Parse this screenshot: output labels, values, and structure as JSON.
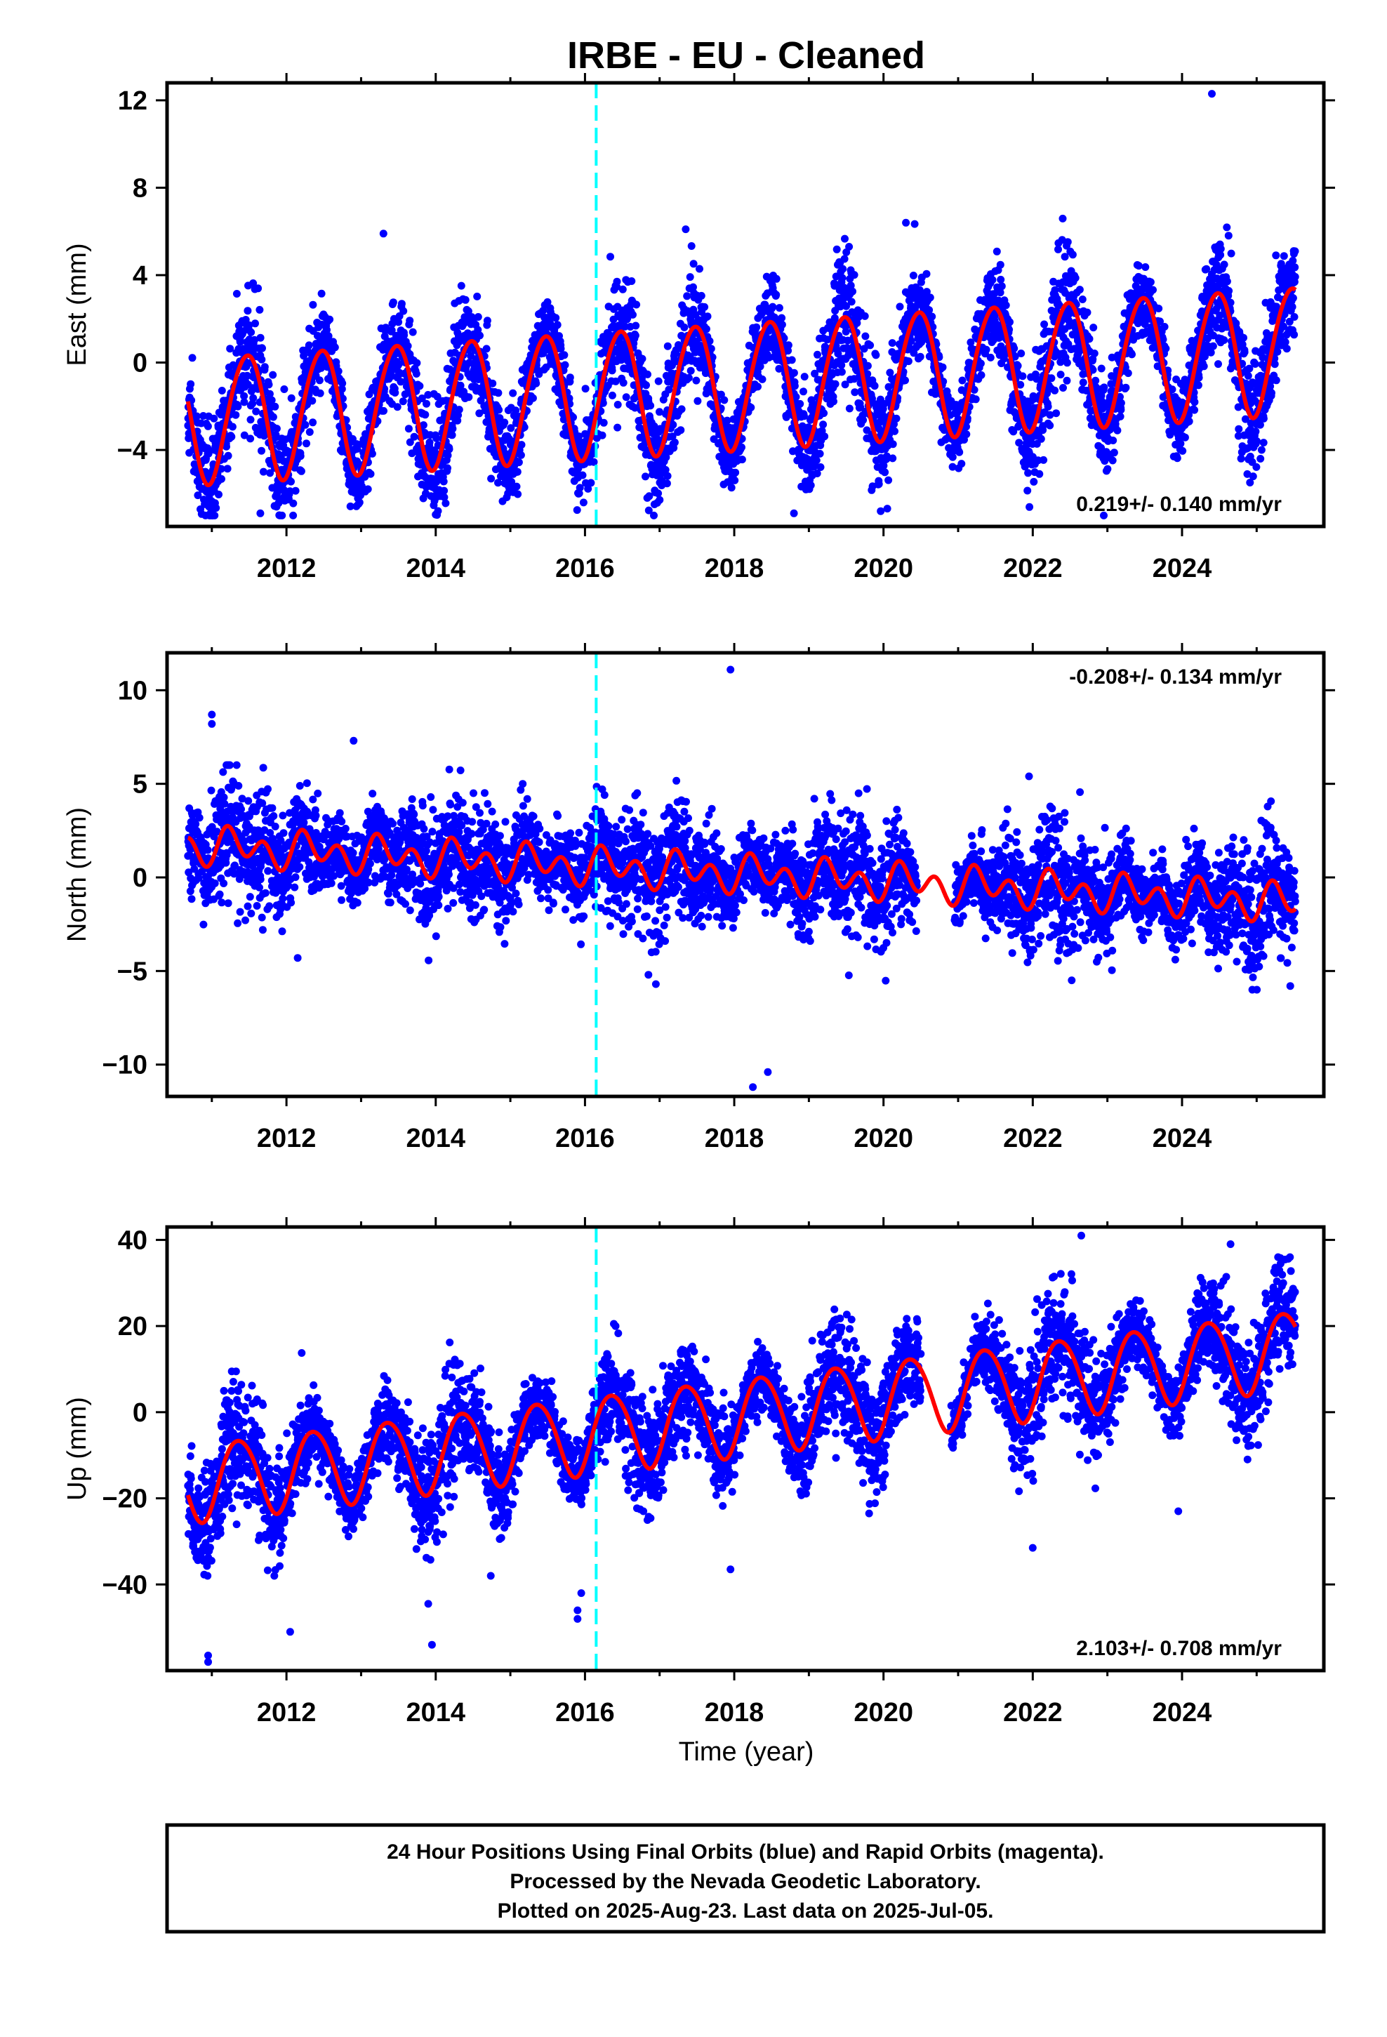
{
  "title": "IRBE  - EU - Cleaned",
  "colors": {
    "final_orbits": "#0000ff",
    "model": "#ff0000",
    "antenna_change": "#00ffff",
    "frame": "#000000"
  },
  "chart_data": [
    {
      "type": "scatter",
      "component": "east",
      "ylabel": "East (mm)",
      "xlabel": "",
      "xlim": [
        2010.4,
        2025.9
      ],
      "ylim": [
        -7.5,
        12.8
      ],
      "x_ticks": [
        2012,
        2014,
        2016,
        2018,
        2020,
        2022,
        2024
      ],
      "y_ticks": [
        -4,
        0,
        4,
        8,
        12
      ],
      "y_tick_labels": [
        "−4",
        "0",
        "4",
        "8",
        "12"
      ],
      "rate_label": "0.219+/- 0.140 mm/yr",
      "rate_position": "bottom-right",
      "antenna_change_x": 2016.15,
      "data_range": [
        2010.68,
        2025.52
      ],
      "model": {
        "offset": -1.0,
        "trend": 0.219,
        "ref_year": 2018.0,
        "annual_amp": 2.9,
        "annual_phase": 1.35,
        "semiannual_amp": 0.2,
        "semiannual_phase": 0.5
      },
      "scatter": {
        "noise": 1.1,
        "spread": 0.3,
        "approx_points": 4900,
        "min": -7.0,
        "max": 8.5
      },
      "outliers": [
        [
          2024.4,
          12.3
        ],
        [
          2018.8,
          -6.9
        ],
        [
          2011.65,
          -6.9
        ],
        [
          2013.3,
          5.9
        ],
        [
          2017.35,
          6.1
        ],
        [
          2020.3,
          6.4
        ]
      ]
    },
    {
      "type": "scatter",
      "component": "north",
      "ylabel": "North (mm)",
      "xlabel": "",
      "xlim": [
        2010.4,
        2025.9
      ],
      "ylim": [
        -11.7,
        12.0
      ],
      "x_ticks": [
        2012,
        2014,
        2016,
        2018,
        2020,
        2022,
        2024
      ],
      "y_ticks": [
        -10,
        -5,
        0,
        5,
        10
      ],
      "y_tick_labels": [
        "−10",
        "−5",
        "0",
        "5",
        "10"
      ],
      "rate_label": "-0.208+/- 0.134 mm/yr",
      "rate_position": "top-right",
      "antenna_change_x": 2016.15,
      "data_range": [
        2010.68,
        2025.52
      ],
      "model": {
        "offset": 0.2,
        "trend": -0.208,
        "ref_year": 2018.0,
        "annual_amp": 0.5,
        "annual_phase": 0.4,
        "semiannual_amp": 0.75,
        "semiannual_phase": 0.9
      },
      "scatter": {
        "noise": 1.25,
        "spread": 0.3,
        "approx_points": 4900,
        "min": -6.0,
        "max": 6.0
      },
      "outliers": [
        [
          2011.0,
          8.7
        ],
        [
          2011.0,
          8.2
        ],
        [
          2012.9,
          7.3
        ],
        [
          2017.95,
          11.1
        ],
        [
          2018.25,
          -11.2
        ],
        [
          2018.45,
          -10.4
        ],
        [
          2016.85,
          -5.2
        ],
        [
          2016.95,
          -5.7
        ],
        [
          2012.15,
          -4.3
        ],
        [
          2021.95,
          5.4
        ],
        [
          2025.45,
          -5.8
        ]
      ]
    },
    {
      "type": "scatter",
      "component": "up",
      "ylabel": "Up (mm)",
      "xlabel": "Time (year)",
      "xlim": [
        2010.4,
        2025.9
      ],
      "ylim": [
        -60,
        43
      ],
      "x_ticks": [
        2012,
        2014,
        2016,
        2018,
        2020,
        2022,
        2024
      ],
      "y_ticks": [
        -40,
        -20,
        0,
        20,
        40
      ],
      "y_tick_labels": [
        "−40",
        "−20",
        "0",
        "20",
        "40"
      ],
      "rate_label": "2.103+/- 0.708 mm/yr",
      "rate_position": "bottom-right",
      "antenna_change_x": 2016.15,
      "data_range": [
        2010.68,
        2025.52
      ],
      "model": {
        "offset": -1.0,
        "trend": 2.103,
        "ref_year": 2018.0,
        "annual_amp": 9.0,
        "annual_phase": 0.72,
        "semiannual_amp": 0.8,
        "semiannual_phase": 0.3
      },
      "scatter": {
        "noise": 5.2,
        "spread": 0.35,
        "approx_points": 4900,
        "min": -38.0,
        "max": 36.0
      },
      "outliers": [
        [
          2010.95,
          -56.5
        ],
        [
          2010.95,
          -58.0
        ],
        [
          2013.95,
          -54.0
        ],
        [
          2012.05,
          -51.0
        ],
        [
          2015.9,
          -48.0
        ],
        [
          2015.9,
          -46.0
        ],
        [
          2015.95,
          -42.0
        ],
        [
          2013.9,
          -44.5
        ],
        [
          2022.65,
          41.0
        ],
        [
          2024.65,
          39.0
        ],
        [
          2022.0,
          -31.5
        ],
        [
          2023.95,
          -23.0
        ],
        [
          2017.95,
          -36.5
        ]
      ]
    }
  ],
  "footer": {
    "line1": "24 Hour Positions Using Final Orbits (blue) and Rapid Orbits (magenta).",
    "line2": "Processed by the Nevada Geodetic Laboratory.",
    "line3": "Plotted on 2025-Aug-23. Last data on 2025-Jul-05."
  }
}
